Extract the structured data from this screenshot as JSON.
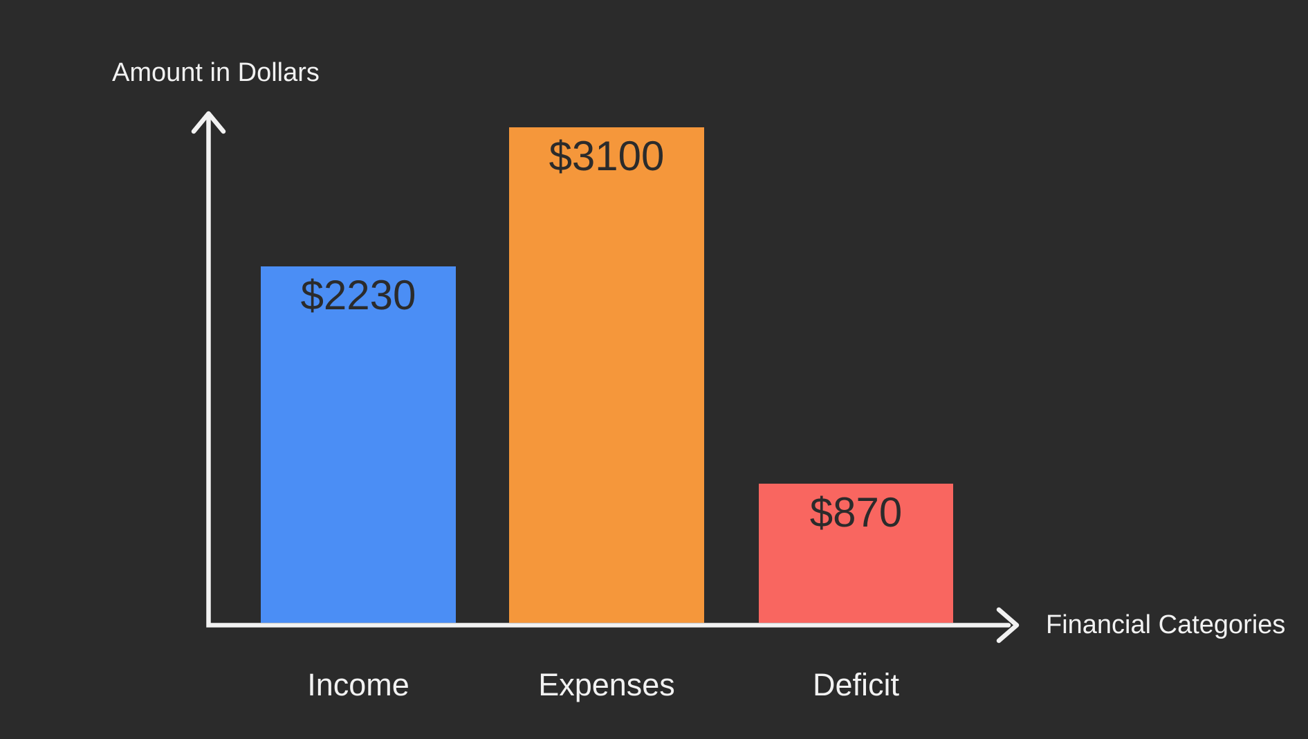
{
  "chart_data": {
    "type": "bar",
    "categories": [
      "Income",
      "Expenses",
      "Deficit"
    ],
    "values": [
      2230,
      3100,
      870
    ],
    "value_labels": [
      "$2230",
      "$3100",
      "$870"
    ],
    "bar_colors": [
      "#4B8EF5",
      "#F5973B",
      "#F96660"
    ],
    "xlabel": "Financial Categories",
    "ylabel": "Amount in Dollars",
    "ylim": [
      0,
      3100
    ],
    "grid": false,
    "legend": false,
    "background_color": "#2B2B2B",
    "axis_color": "#F2F2F2",
    "category_label_color": "#F2F2F2",
    "value_text_color": "#2B2B2B"
  }
}
